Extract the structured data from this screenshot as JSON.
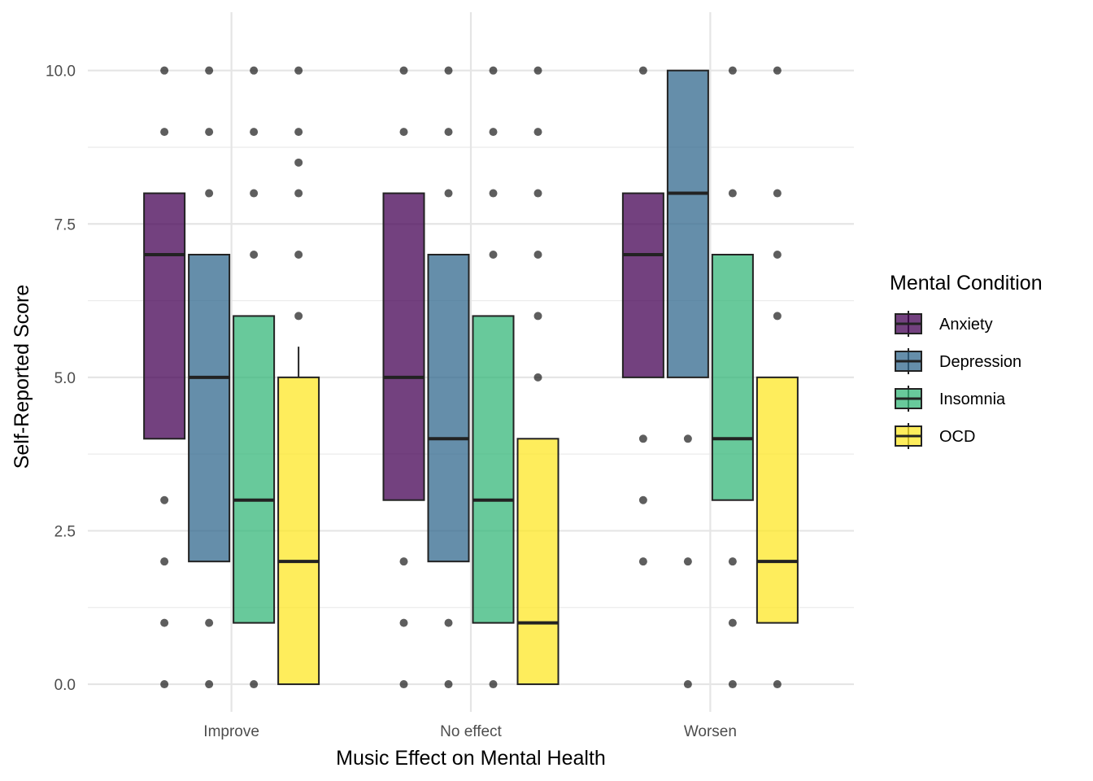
{
  "chart_data": {
    "type": "boxplot",
    "xlabel": "Music Effect on Mental Health",
    "ylabel": "Self-Reported Score",
    "categories": [
      "Improve",
      "No effect",
      "Worsen"
    ],
    "ylim": [
      -0.45,
      10.95
    ],
    "y_ticks": [
      0.0,
      2.5,
      5.0,
      7.5,
      10.0
    ],
    "y_tick_labels": [
      "0.0",
      "2.5",
      "5.0",
      "7.5",
      "10.0"
    ],
    "grid": true,
    "legend": {
      "title": "Mental Condition",
      "placement": "right",
      "entries": [
        "Anxiety",
        "Depression",
        "Insomnia",
        "OCD"
      ]
    },
    "series": [
      {
        "name": "Anxiety",
        "color": "#440154",
        "boxes": [
          {
            "category": "Improve",
            "q1": 4,
            "median": 7,
            "q3": 8,
            "whisker_low": 4,
            "whisker_high": 8,
            "outliers": [
              10,
              9,
              3,
              2,
              1,
              0
            ]
          },
          {
            "category": "No effect",
            "q1": 3,
            "median": 5,
            "q3": 8,
            "whisker_low": 3,
            "whisker_high": 8,
            "outliers": [
              10,
              9,
              2,
              1,
              0
            ]
          },
          {
            "category": "Worsen",
            "q1": 5,
            "median": 7,
            "q3": 8,
            "whisker_low": 5,
            "whisker_high": 8,
            "outliers": [
              10,
              4,
              3,
              2
            ]
          }
        ]
      },
      {
        "name": "Depression",
        "color": "#31688E",
        "boxes": [
          {
            "category": "Improve",
            "q1": 2,
            "median": 5,
            "q3": 7,
            "whisker_low": 2,
            "whisker_high": 7,
            "outliers": [
              10,
              9,
              8,
              1,
              0
            ]
          },
          {
            "category": "No effect",
            "q1": 2,
            "median": 4,
            "q3": 7,
            "whisker_low": 2,
            "whisker_high": 7,
            "outliers": [
              10,
              9,
              8,
              1,
              0
            ]
          },
          {
            "category": "Worsen",
            "q1": 5,
            "median": 8,
            "q3": 10,
            "whisker_low": 5,
            "whisker_high": 10,
            "outliers": [
              4,
              2,
              0
            ]
          }
        ]
      },
      {
        "name": "Insomnia",
        "color": "#35B779",
        "boxes": [
          {
            "category": "Improve",
            "q1": 1,
            "median": 3,
            "q3": 6,
            "whisker_low": 1,
            "whisker_high": 6,
            "outliers": [
              10,
              9,
              8,
              7,
              0
            ]
          },
          {
            "category": "No effect",
            "q1": 1,
            "median": 3,
            "q3": 6,
            "whisker_low": 1,
            "whisker_high": 6,
            "outliers": [
              10,
              9,
              8,
              7,
              0
            ]
          },
          {
            "category": "Worsen",
            "q1": 3,
            "median": 4,
            "q3": 7,
            "whisker_low": 3,
            "whisker_high": 7,
            "outliers": [
              10,
              8,
              2,
              1,
              0
            ]
          }
        ]
      },
      {
        "name": "OCD",
        "color": "#FDE725",
        "boxes": [
          {
            "category": "Improve",
            "q1": 0,
            "median": 2,
            "q3": 5,
            "whisker_low": 0,
            "whisker_high": 5.5,
            "outliers": [
              10,
              9,
              8.5,
              8,
              7,
              6
            ]
          },
          {
            "category": "No effect",
            "q1": 0,
            "median": 1,
            "q3": 4,
            "whisker_low": 0,
            "whisker_high": 4,
            "outliers": [
              10,
              9,
              8,
              7,
              6,
              5
            ]
          },
          {
            "category": "Worsen",
            "q1": 1,
            "median": 2,
            "q3": 5,
            "whisker_low": 1,
            "whisker_high": 5,
            "outliers": [
              10,
              8,
              7,
              6,
              0
            ]
          }
        ]
      }
    ]
  }
}
